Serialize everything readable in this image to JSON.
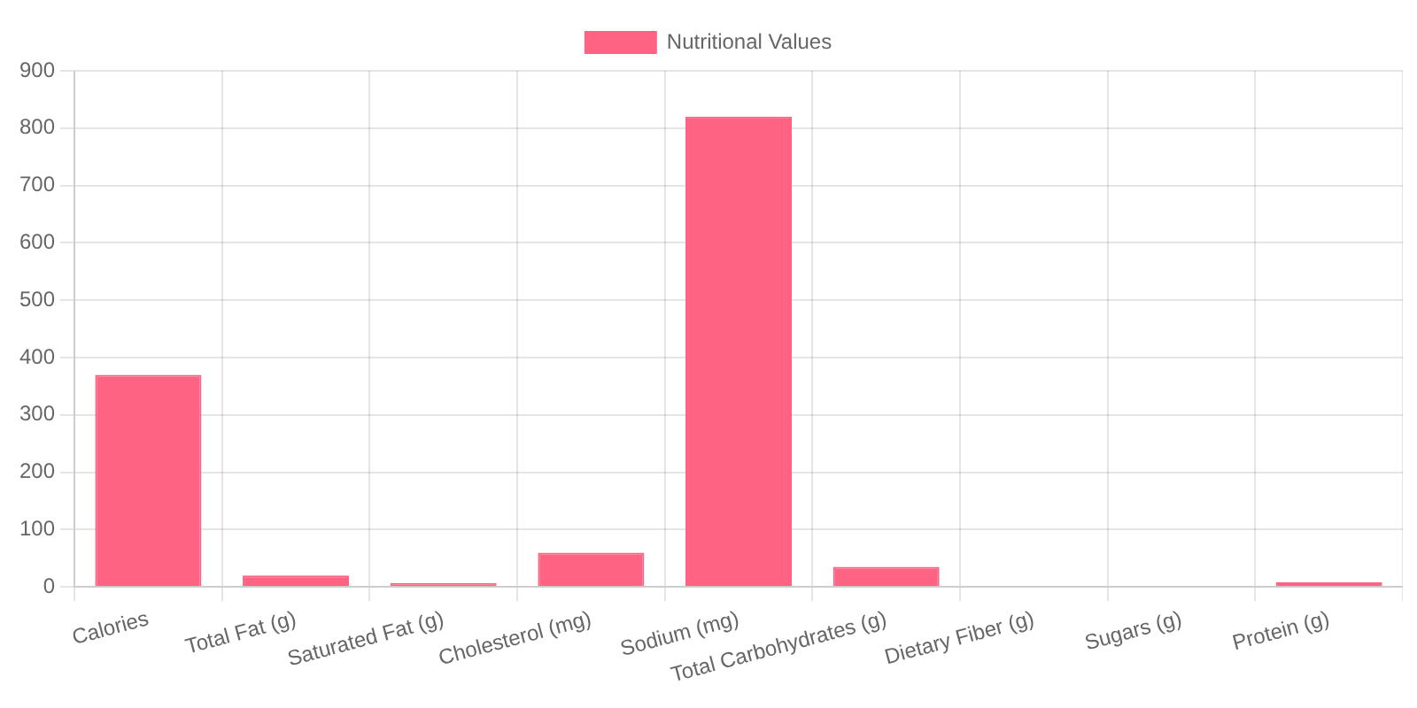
{
  "chart_data": {
    "type": "bar",
    "categories": [
      "Calories",
      "Total Fat (g)",
      "Saturated Fat (g)",
      "Cholesterol (mg)",
      "Sodium (mg)",
      "Total Carbohydrates (g)",
      "Dietary Fiber (g)",
      "Sugars (g)",
      "Protein (g)"
    ],
    "series": [
      {
        "name": "Nutritional Values",
        "color": "#ff6384",
        "values": [
          370,
          20,
          7,
          60,
          820,
          35,
          0,
          0,
          8
        ]
      }
    ],
    "ylim": [
      0,
      900
    ],
    "yticks": [
      0,
      100,
      200,
      300,
      400,
      500,
      600,
      700,
      800,
      900
    ],
    "grid": true,
    "legend": "top"
  }
}
